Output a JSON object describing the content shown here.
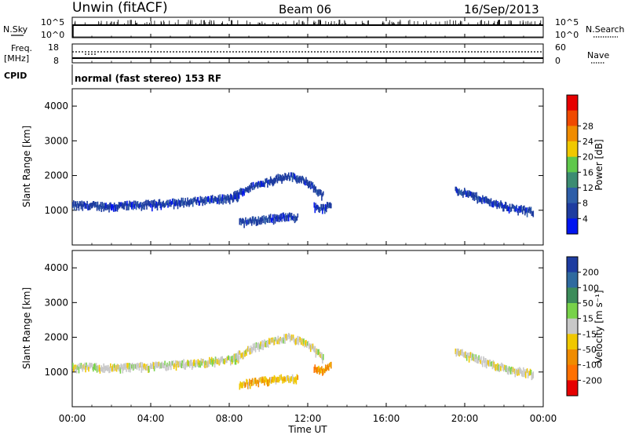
{
  "header": {
    "station": "Unwin  (fitACF)",
    "beam": "Beam 06",
    "date": "16/Sep/2013"
  },
  "top_panel": {
    "left_label": "N.Sky",
    "left_ticks": [
      "10^5",
      "10^0"
    ],
    "right_ticks": [
      "10^5",
      "10^0"
    ],
    "right_label": "N.Search"
  },
  "freq_panel": {
    "left_label_1": "Freq.",
    "left_label_2": "[MHz]",
    "left_ticks": [
      "18",
      "8"
    ],
    "right_ticks": [
      "60",
      "0"
    ],
    "right_label": "Nave"
  },
  "cpid": {
    "label": "CPID",
    "text": "normal (fast stereo) 153 RF"
  },
  "x_axis": {
    "label": "Time UT",
    "ticks": [
      "00:00",
      "04:00",
      "08:00",
      "12:00",
      "16:00",
      "20:00",
      "00:00"
    ],
    "tick_hours": [
      0,
      4,
      8,
      12,
      16,
      20,
      24
    ]
  },
  "colors": {
    "power": [
      "#0014f0",
      "#1e3ca0",
      "#2e5ea8",
      "#3c8c72",
      "#5fc84c",
      "#f0c800",
      "#f08c00",
      "#f04a00",
      "#e60000"
    ],
    "velocity": [
      "#1e3ca0",
      "#2f6a9f",
      "#3c8c5a",
      "#78d24a",
      "#c8c8c8",
      "#f0c800",
      "#f08c00",
      "#ff7000",
      "#e60000"
    ]
  },
  "chart_data": [
    {
      "type": "heatmap",
      "title": "Power",
      "ylabel": "Slant Range [km]",
      "xlabel": "",
      "xlim": [
        0,
        24
      ],
      "ylim": [
        0,
        4500
      ],
      "yticks": [
        "1000",
        "2000",
        "3000",
        "4000"
      ],
      "ytick_values": [
        1000,
        2000,
        3000,
        4000
      ],
      "colorbar": {
        "label": "Power [dB]",
        "ticks": [
          "4",
          "8",
          "12",
          "16",
          "20",
          "24",
          "28"
        ]
      },
      "echo_bands": [
        {
          "x": [
            0,
            2,
            4,
            6,
            8,
            8.5
          ],
          "y": [
            1150,
            1120,
            1170,
            1250,
            1350,
            1380
          ],
          "level": 1
        },
        {
          "x": [
            8.2,
            9,
            10,
            11,
            12,
            12.8
          ],
          "y": [
            1420,
            1650,
            1850,
            2000,
            1800,
            1400
          ],
          "level": 1
        },
        {
          "x": [
            8.5,
            9.5,
            10.5,
            11.5
          ],
          "y": [
            650,
            720,
            800,
            820
          ],
          "level": 1
        },
        {
          "x": [
            12.3,
            12.8,
            13.2
          ],
          "y": [
            1100,
            1050,
            1200
          ],
          "level": 1
        },
        {
          "x": [
            19.5,
            20.5,
            21.5,
            22.5,
            23.5
          ],
          "y": [
            1600,
            1400,
            1200,
            1050,
            950
          ],
          "level": 1
        }
      ]
    },
    {
      "type": "heatmap",
      "title": "Velocity",
      "ylabel": "Slant Range [km]",
      "xlabel": "Time UT",
      "xlim": [
        0,
        24
      ],
      "ylim": [
        0,
        4500
      ],
      "yticks": [
        "1000",
        "2000",
        "3000",
        "4000"
      ],
      "ytick_values": [
        1000,
        2000,
        3000,
        4000
      ],
      "colorbar": {
        "label": "Velocity [m s⁻¹]",
        "ticks": [
          "200",
          "100",
          "50",
          "15",
          "-15",
          "-50",
          "-100",
          "-200"
        ]
      },
      "echo_bands": [
        {
          "x": [
            0,
            2,
            4,
            6,
            8,
            8.5
          ],
          "y": [
            1150,
            1120,
            1170,
            1250,
            1350,
            1380
          ],
          "level": 4
        },
        {
          "x": [
            8.2,
            9,
            10,
            11,
            12,
            12.8
          ],
          "y": [
            1420,
            1650,
            1850,
            2000,
            1800,
            1400
          ],
          "level": 4
        },
        {
          "x": [
            8.5,
            9.5,
            10.5,
            11.5
          ],
          "y": [
            650,
            720,
            800,
            820
          ],
          "level": 5
        },
        {
          "x": [
            12.3,
            12.8,
            13.2
          ],
          "y": [
            1100,
            1050,
            1200
          ],
          "level": 6
        },
        {
          "x": [
            19.5,
            20.5,
            21.5,
            22.5,
            23.5
          ],
          "y": [
            1600,
            1400,
            1200,
            1050,
            950
          ],
          "level": 4
        }
      ]
    }
  ]
}
